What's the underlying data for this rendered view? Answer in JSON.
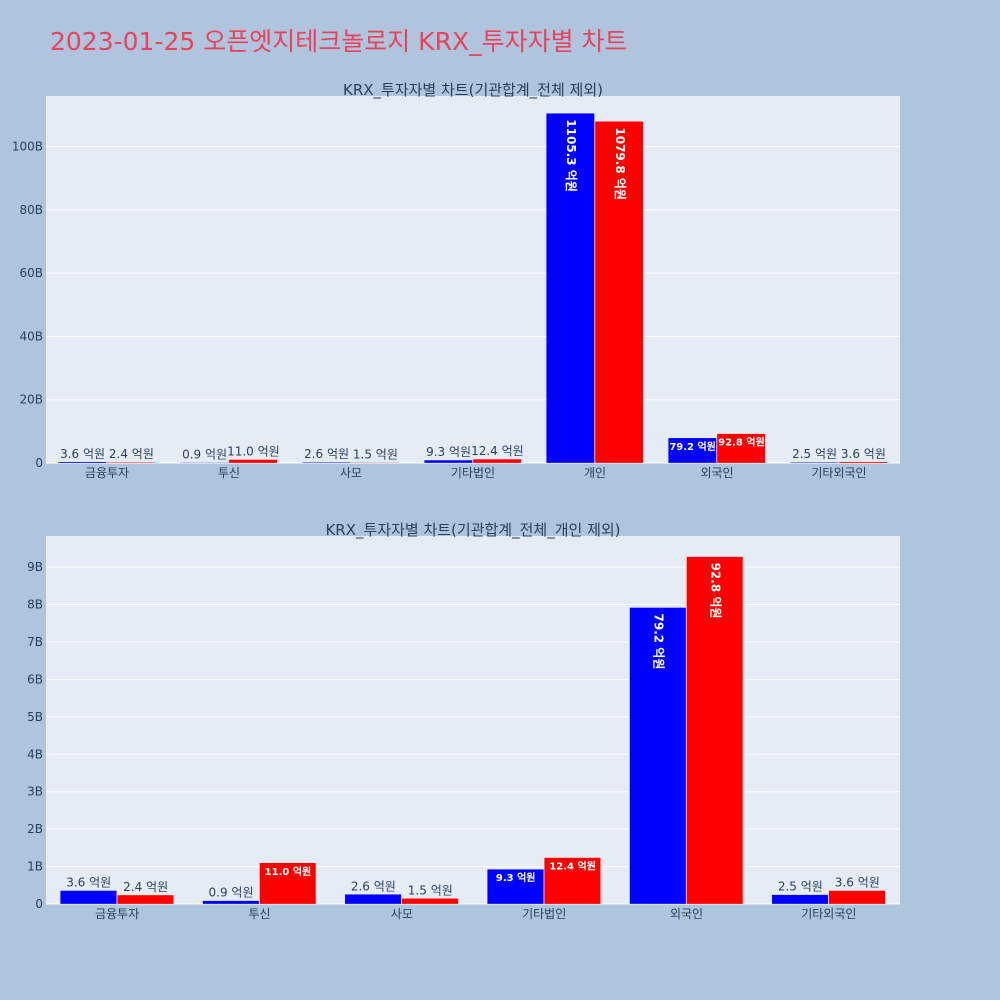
{
  "page_title": "2023-01-25 오픈엣지테크놀로지 KRX_투자자별 차트",
  "colors": {
    "buy": "#0000ff",
    "sell": "#ff0000",
    "plot_bg": "#e5ecf6",
    "paper_bg": "#b0c4de",
    "title": "#e8435a"
  },
  "chart_data": [
    {
      "type": "bar",
      "title": "KRX_투자자별 차트(기관합계_전체 제외)",
      "categories": [
        "금융투자",
        "투신",
        "사모",
        "기타법인",
        "개인",
        "외국인",
        "기타외국인"
      ],
      "series": [
        {
          "values": [
            360000000,
            90000000,
            260000000,
            930000000,
            110530000000,
            7920000000,
            250000000
          ],
          "labels": [
            "3.6 억원",
            "0.9 억원",
            "2.6 억원",
            "9.3 억원",
            "1105.3 억원",
            "79.2 억원",
            "2.5 억원"
          ]
        },
        {
          "values": [
            240000000,
            1100000000,
            150000000,
            1240000000,
            107980000000,
            9280000000,
            360000000
          ],
          "labels": [
            "2.4 억원",
            "11.0 억원",
            "1.5 억원",
            "12.4 억원",
            "1079.8 억원",
            "92.8 억원",
            "3.6 억원"
          ]
        }
      ],
      "yticks": [
        0,
        20000000000,
        40000000000,
        60000000000,
        80000000000,
        100000000000
      ],
      "yticklabels": [
        "0",
        "20B",
        "40B",
        "60B",
        "80B",
        "100B"
      ],
      "ylim": [
        0,
        116000000000
      ],
      "grid": true
    },
    {
      "type": "bar",
      "title": "KRX_투자자별 차트(기관합계_전체_개인 제외)",
      "categories": [
        "금융투자",
        "투신",
        "사모",
        "기타법인",
        "외국인",
        "기타외국인"
      ],
      "series": [
        {
          "values": [
            360000000,
            90000000,
            260000000,
            930000000,
            7920000000,
            250000000
          ],
          "labels": [
            "3.6 억원",
            "0.9 억원",
            "2.6 억원",
            "9.3 억원",
            "79.2 억원",
            "2.5 억원"
          ]
        },
        {
          "values": [
            240000000,
            1100000000,
            150000000,
            1240000000,
            9280000000,
            360000000
          ],
          "labels": [
            "2.4 억원",
            "11.0 억원",
            "1.5 억원",
            "12.4 억원",
            "92.8 억원",
            "3.6 억원"
          ]
        }
      ],
      "yticks": [
        0,
        1000000000,
        2000000000,
        3000000000,
        4000000000,
        5000000000,
        6000000000,
        7000000000,
        8000000000,
        9000000000
      ],
      "yticklabels": [
        "0",
        "1B",
        "2B",
        "3B",
        "4B",
        "5B",
        "6B",
        "7B",
        "8B",
        "9B"
      ],
      "ylim": [
        0,
        9830000000
      ],
      "grid": true
    }
  ]
}
